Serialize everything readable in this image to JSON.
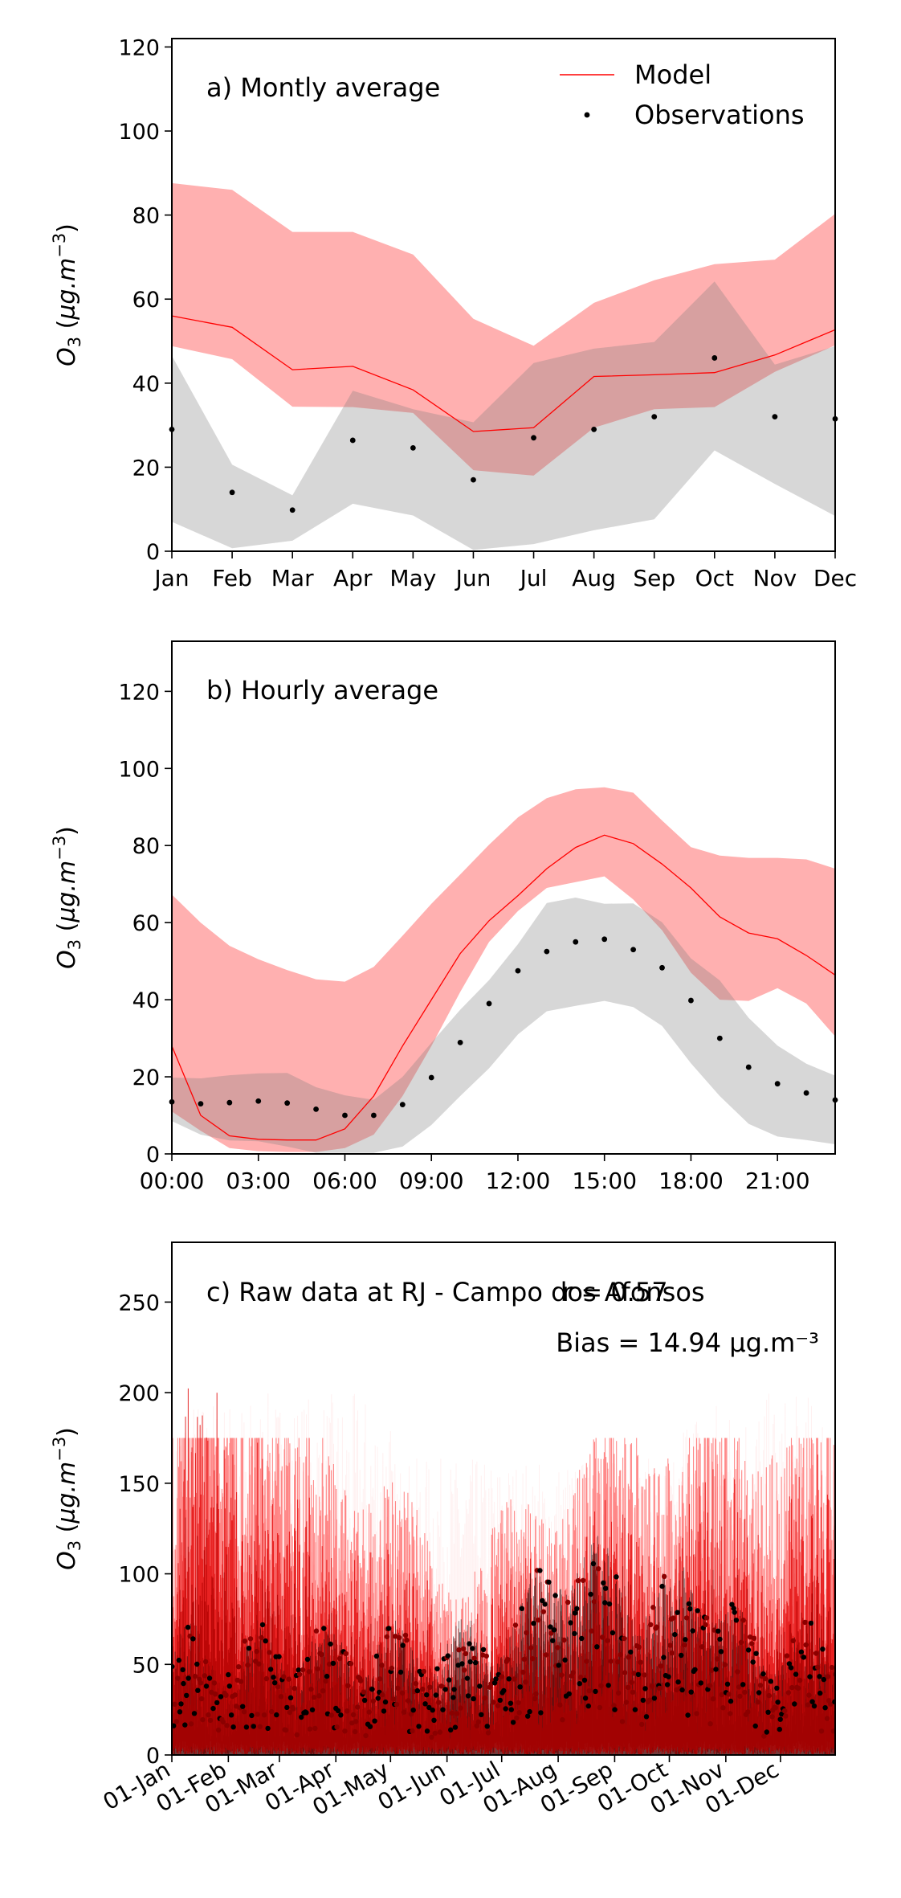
{
  "chart_data": [
    {
      "type": "line",
      "panel_label": "a) Montly average",
      "ylabel": "O3 (µg.m⁻³)",
      "ylim": [
        0,
        122
      ],
      "yticks": [
        0,
        20,
        40,
        60,
        80,
        100,
        120
      ],
      "xlim": [
        0,
        11
      ],
      "categories": [
        "Jan",
        "Feb",
        "Mar",
        "Apr",
        "May",
        "Jun",
        "Jul",
        "Aug",
        "Sep",
        "Oct",
        "Nov",
        "Dec"
      ],
      "legend": {
        "position": "top-right",
        "entries": [
          "Model",
          "Observations"
        ]
      },
      "series": [
        {
          "name": "Model",
          "kind": "line",
          "color": "#ff0000",
          "values": [
            56,
            53.3,
            43.2,
            44,
            38.4,
            28.5,
            29.4,
            41.6,
            42,
            42.5,
            46.7,
            52.7
          ],
          "band_lower": [
            48.8,
            45.7,
            34.4,
            34.3,
            32.9,
            19.3,
            18,
            29.4,
            33.8,
            34.3,
            42.7,
            49
          ],
          "band_upper": [
            87.6,
            86,
            76,
            76,
            70.6,
            55.3,
            48.9,
            59.1,
            64.5,
            68.3,
            69.4,
            80.3
          ]
        },
        {
          "name": "Observations",
          "kind": "scatter",
          "color": "#000000",
          "values": [
            29,
            14,
            9.8,
            26.4,
            24.6,
            17,
            27,
            29,
            32,
            46,
            32,
            31.5
          ],
          "band_lower": [
            7,
            0.7,
            2.5,
            11.3,
            8.5,
            0.3,
            1.7,
            5,
            7.6,
            24,
            16,
            8.4
          ],
          "band_upper": [
            46.5,
            20.6,
            13.3,
            38.2,
            33.8,
            30.7,
            44.8,
            48.2,
            49.8,
            64.2,
            44.4,
            48.8
          ]
        }
      ]
    },
    {
      "type": "line",
      "panel_label": "b) Hourly average",
      "ylabel": "O3 (µg.m⁻³)",
      "ylim": [
        0,
        133
      ],
      "yticks": [
        0,
        20,
        40,
        60,
        80,
        100,
        120
      ],
      "xlim": [
        0,
        23
      ],
      "xticks": [
        0,
        3,
        6,
        9,
        12,
        15,
        18,
        21
      ],
      "xticklabels": [
        "00:00",
        "03:00",
        "06:00",
        "09:00",
        "12:00",
        "15:00",
        "18:00",
        "21:00"
      ],
      "x": [
        0,
        1,
        2,
        3,
        4,
        5,
        6,
        7,
        8,
        9,
        10,
        11,
        12,
        13,
        14,
        15,
        16,
        17,
        18,
        19,
        20,
        21,
        22,
        23
      ],
      "series": [
        {
          "name": "Model",
          "kind": "line",
          "color": "#ff0000",
          "values": [
            28,
            10,
            4.7,
            3.8,
            3.6,
            3.6,
            6.5,
            15,
            28,
            40,
            52,
            60.5,
            67,
            74,
            79.5,
            82.7,
            80.5,
            75.2,
            69,
            61.5,
            57.3,
            55.8,
            51.5,
            46.4
          ],
          "band_lower": [
            11,
            6,
            1.5,
            0.7,
            0.5,
            0.5,
            1.5,
            5,
            15,
            28,
            42,
            55,
            63,
            69,
            70.5,
            72,
            66,
            58,
            47,
            40,
            39.7,
            43,
            39,
            30.5
          ],
          "band_upper": [
            67.3,
            60,
            54,
            50.5,
            47.7,
            45.3,
            44.7,
            48.5,
            56.6,
            64.9,
            72.5,
            80.2,
            87.3,
            92.3,
            94.6,
            95.1,
            93.7,
            86.5,
            79.6,
            77.4,
            76.8,
            76.8,
            76.4,
            74
          ]
        },
        {
          "name": "Observations",
          "kind": "scatter",
          "color": "#000000",
          "values": [
            13.5,
            13,
            13.3,
            13.7,
            13.2,
            11.6,
            10,
            10,
            12.8,
            19.8,
            28.9,
            39,
            47.5,
            52.5,
            55,
            55.7,
            53,
            48.3,
            39.8,
            30,
            22.5,
            18.2,
            15.8,
            14
          ],
          "band_lower": [
            8.5,
            5,
            3.5,
            3.3,
            1.9,
            0.3,
            0.3,
            0.3,
            1.9,
            7.5,
            15,
            22.2,
            31,
            37,
            38.4,
            39.7,
            38.1,
            33.2,
            23.5,
            15,
            7.8,
            4.5,
            3.6,
            2.5
          ],
          "band_upper": [
            19.8,
            19.6,
            20.4,
            20.9,
            21,
            17.3,
            15.2,
            14,
            20,
            28.8,
            37.4,
            45.1,
            54.4,
            65.1,
            66.5,
            64.9,
            65,
            60.1,
            50.7,
            45,
            35.3,
            28.1,
            23.4,
            20.3
          ]
        }
      ]
    },
    {
      "type": "line",
      "panel_label": "c) Raw data at RJ - Campo dos Afonsos",
      "r_text": "r = 0.57",
      "bias_text": "Bias = 14.94 µg.m⁻³",
      "ylabel": "O3 (µg.m⁻³)",
      "ylim": [
        0,
        283
      ],
      "yticks": [
        0,
        50,
        100,
        150,
        200,
        250
      ],
      "xlim": [
        "2023-01-01",
        "2023-12-31"
      ],
      "xticks": [
        "2023-01-01",
        "2023-02-01",
        "2023-03-01",
        "2023-04-01",
        "2023-05-01",
        "2023-06-01",
        "2023-07-01",
        "2023-08-01",
        "2023-09-01",
        "2023-10-01",
        "2023-11-01",
        "2023-12-01"
      ],
      "xticklabels": [
        "01-Jan",
        "01-Feb",
        "01-Mar",
        "01-Apr",
        "01-May",
        "01-Jun",
        "01-Jul",
        "01-Aug",
        "01-Sep",
        "01-Oct",
        "01-Nov",
        "01-Dec"
      ],
      "series": [
        {
          "name": "Model",
          "kind": "line",
          "color": "#ff0000"
        },
        {
          "name": "Observations",
          "kind": "scatter",
          "color": "#000000"
        }
      ]
    }
  ]
}
